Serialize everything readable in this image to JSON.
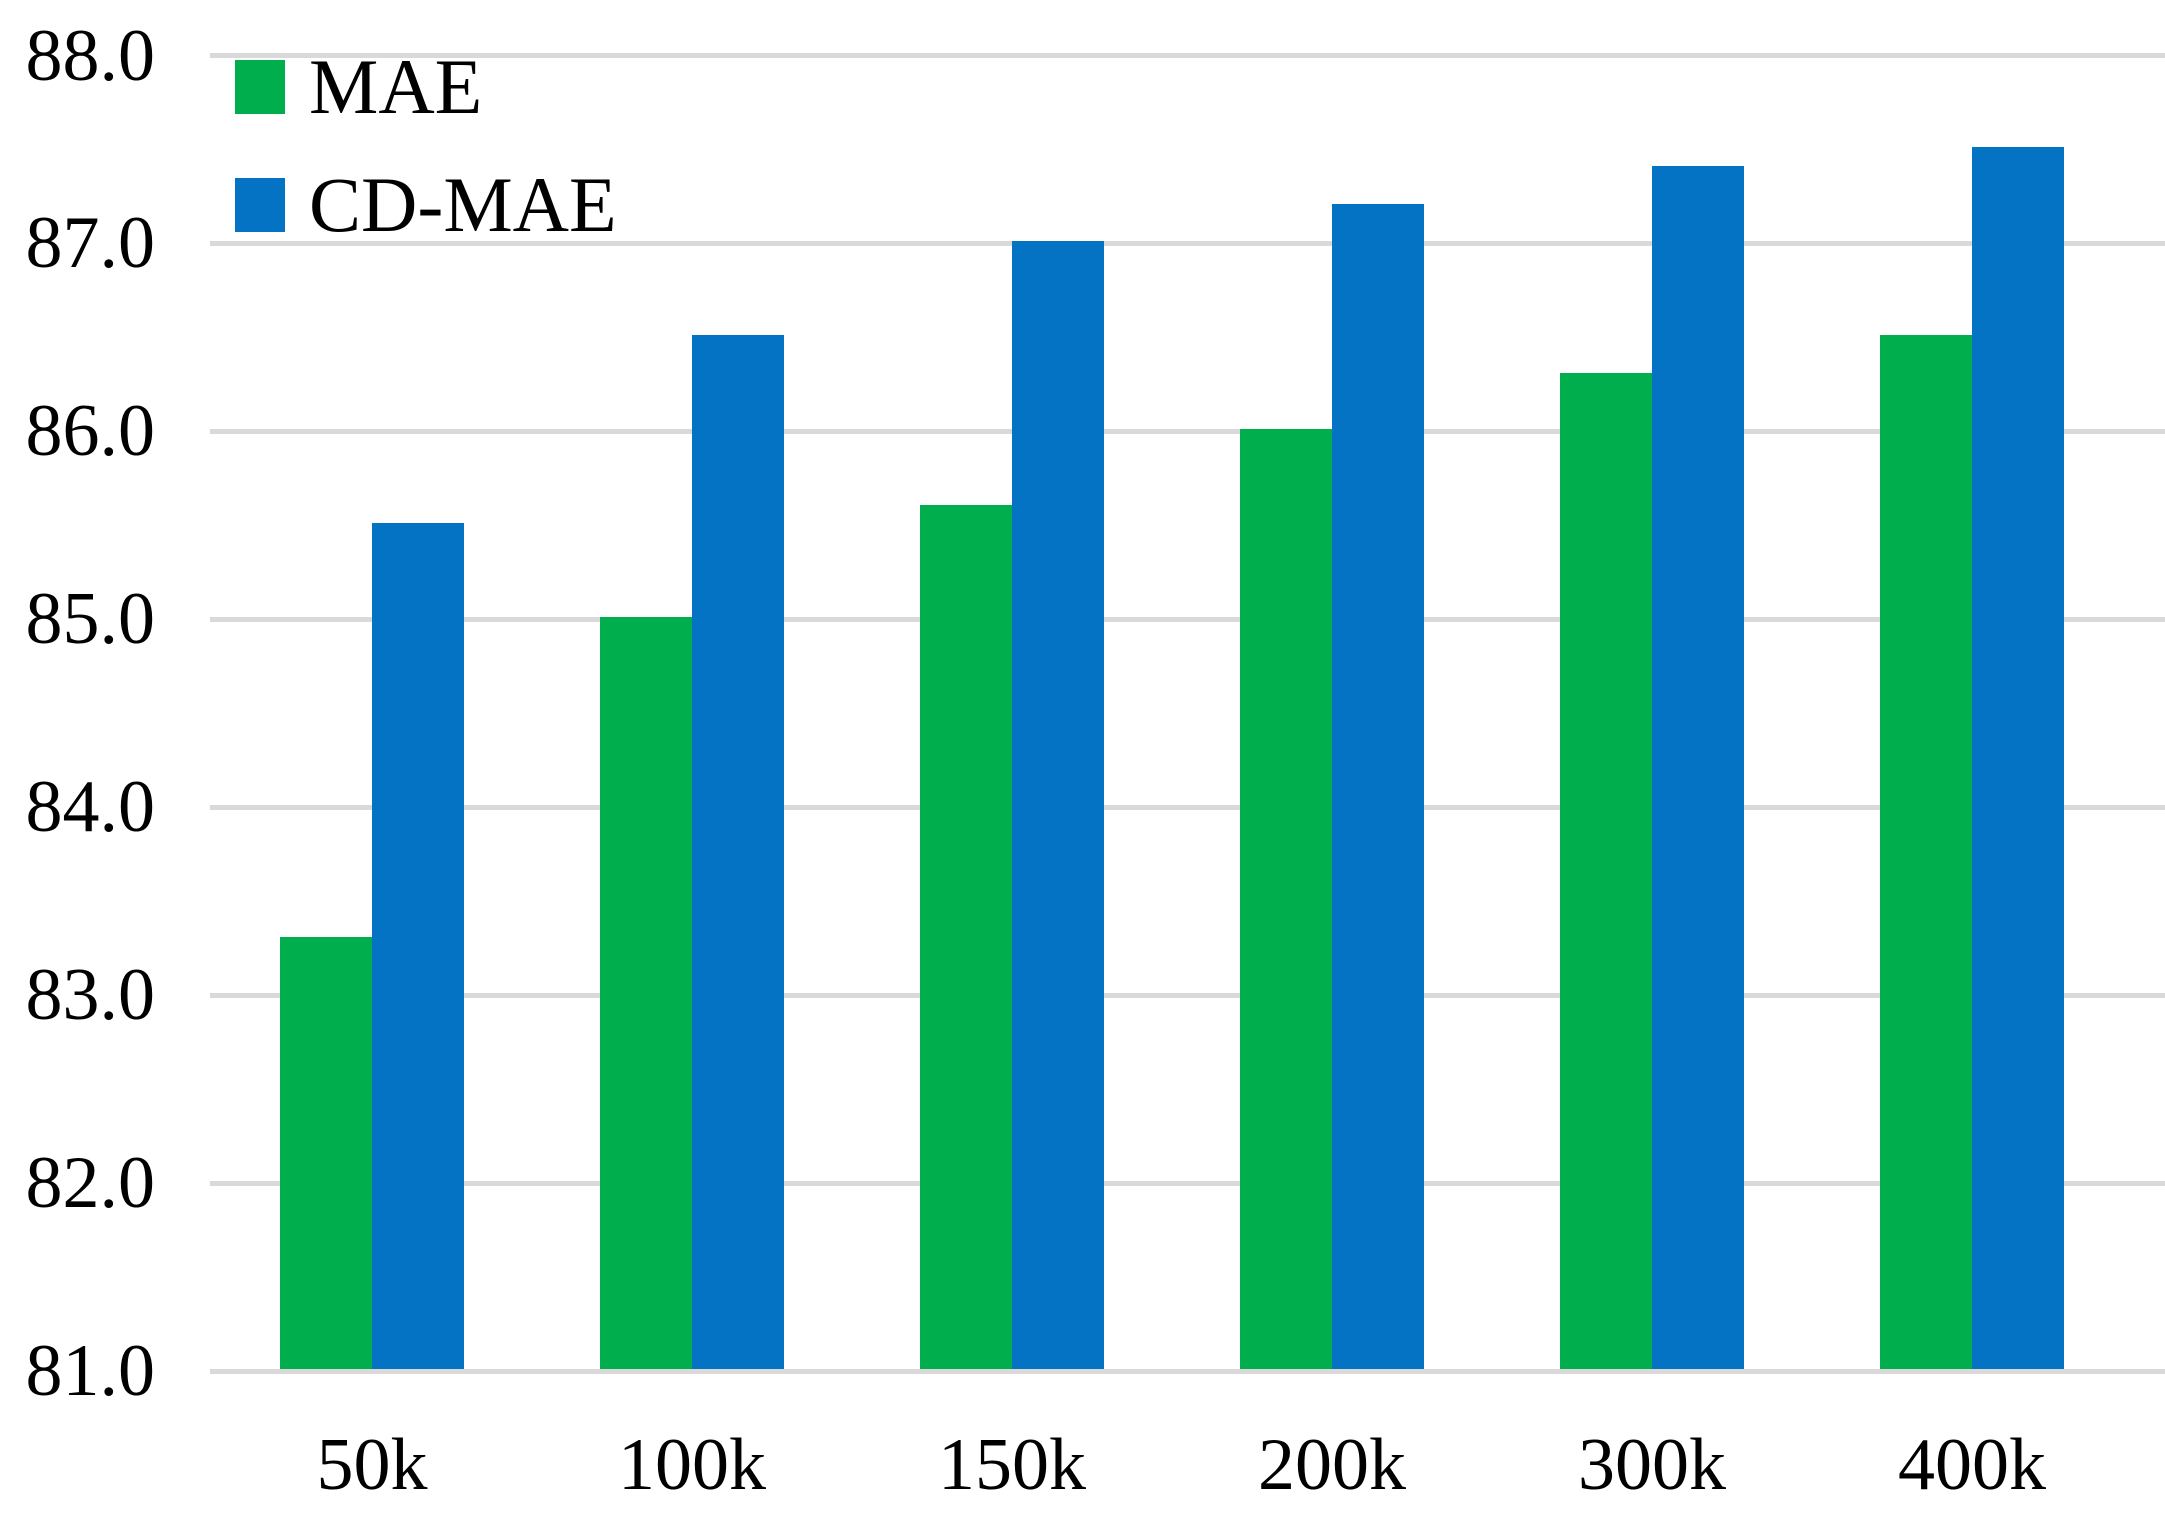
{
  "chart_data": {
    "type": "bar",
    "title": "",
    "xlabel": "",
    "ylabel": "",
    "categories": [
      "50k",
      "100k",
      "150k",
      "200k",
      "300k",
      "400k"
    ],
    "series": [
      {
        "name": "MAE",
        "color": "#00AE4E",
        "values": [
          83.3,
          85.0,
          85.6,
          86.0,
          86.3,
          86.5
        ]
      },
      {
        "name": "CD-MAE",
        "color": "#0473C4",
        "values": [
          85.5,
          86.5,
          87.0,
          87.2,
          87.4,
          87.5
        ]
      }
    ],
    "ylim": [
      81.0,
      88.0
    ],
    "ytick_step": 1.0,
    "ytick_labels": [
      "88.0",
      "87.0",
      "86.0",
      "85.0",
      "84.0",
      "83.0",
      "82.0",
      "81.0"
    ],
    "grid": "horizontal",
    "gridline_color": "#D9D9D9",
    "legend_position": "top-left",
    "background_color": "#FFFFFF",
    "text_color": "#000000"
  }
}
